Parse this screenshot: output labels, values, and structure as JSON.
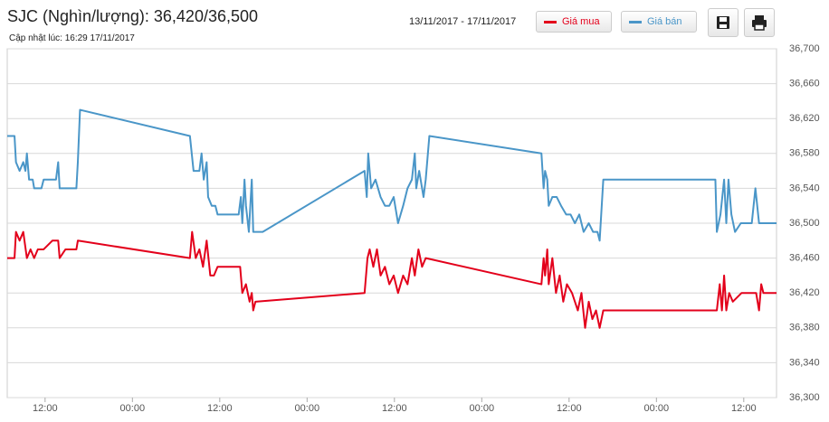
{
  "chart_data": {
    "type": "line",
    "title": "SJC (Nghìn/lượng): 36,420/36,500",
    "subtitle": "Cập nhật lúc: 16:29 17/11/2017",
    "date_range": "13/11/2017 - 17/11/2017",
    "xlim": [
      6.8,
      112.5
    ],
    "xticks": [
      {
        "value": 12,
        "label": "12:00"
      },
      {
        "value": 24,
        "label": "00:00"
      },
      {
        "value": 36,
        "label": "12:00"
      },
      {
        "value": 48,
        "label": "00:00"
      },
      {
        "value": 60,
        "label": "12:00"
      },
      {
        "value": 72,
        "label": "00:00"
      },
      {
        "value": 84,
        "label": "12:00"
      },
      {
        "value": 96,
        "label": "00:00"
      },
      {
        "value": 108,
        "label": "12:00"
      }
    ],
    "ylim": [
      36300,
      36700
    ],
    "yticks": [
      {
        "value": 36300,
        "label": "36,300"
      },
      {
        "value": 36340,
        "label": "36,340"
      },
      {
        "value": 36380,
        "label": "36,380"
      },
      {
        "value": 36420,
        "label": "36,420"
      },
      {
        "value": 36460,
        "label": "36,460"
      },
      {
        "value": 36500,
        "label": "36,500"
      },
      {
        "value": 36540,
        "label": "36,540"
      },
      {
        "value": 36580,
        "label": "36,580"
      },
      {
        "value": 36620,
        "label": "36,620"
      },
      {
        "value": 36660,
        "label": "36,660"
      },
      {
        "value": 36700,
        "label": "36,700"
      }
    ],
    "grid": true,
    "series": [
      {
        "name": "Giá mua",
        "color": "#e3001b",
        "x": [
          6.8,
          7.8,
          8.0,
          8.5,
          9.0,
          9.5,
          10.0,
          10.5,
          11.0,
          11.8,
          13.0,
          13.8,
          14.0,
          14.8,
          16.3,
          16.5,
          31.9,
          32.2,
          32.7,
          33.2,
          33.7,
          34.2,
          34.7,
          35.2,
          35.7,
          37.5,
          38.8,
          39.1,
          39.6,
          40.1,
          40.4,
          40.6,
          40.9,
          55.9,
          56.3,
          56.6,
          57.1,
          57.6,
          58.1,
          58.7,
          59.3,
          59.9,
          60.5,
          61.2,
          61.8,
          62.4,
          62.8,
          63.3,
          63.8,
          64.3,
          80.2,
          80.5,
          80.7,
          81.0,
          81.2,
          81.7,
          82.2,
          82.7,
          83.2,
          83.7,
          84.4,
          85.2,
          85.7,
          86.2,
          86.7,
          87.2,
          87.7,
          88.2,
          88.7,
          104.3,
          104.7,
          105.0,
          105.3,
          105.6,
          106.0,
          106.5,
          107.7,
          109.7,
          110.1,
          110.4,
          110.7,
          112.5
        ],
        "values": [
          36460,
          36460,
          36490,
          36480,
          36490,
          36460,
          36470,
          36460,
          36470,
          36470,
          36480,
          36480,
          36460,
          36470,
          36470,
          36480,
          36460,
          36490,
          36460,
          36470,
          36450,
          36480,
          36440,
          36440,
          36450,
          36450,
          36450,
          36420,
          36430,
          36410,
          36420,
          36400,
          36410,
          36420,
          36460,
          36470,
          36450,
          36470,
          36440,
          36450,
          36430,
          36440,
          36420,
          36440,
          36430,
          36460,
          36440,
          36470,
          36450,
          36460,
          36430,
          36460,
          36440,
          36470,
          36430,
          36460,
          36420,
          36440,
          36410,
          36430,
          36420,
          36400,
          36420,
          36380,
          36410,
          36390,
          36400,
          36380,
          36400,
          36400,
          36430,
          36400,
          36440,
          36400,
          36420,
          36410,
          36420,
          36420,
          36400,
          36430,
          36420,
          36420
        ]
      },
      {
        "name": "Giá bán",
        "color": "#4a96c8",
        "x": [
          6.8,
          7.8,
          8.0,
          8.5,
          9.0,
          9.3,
          9.5,
          9.8,
          10.3,
          10.5,
          11.5,
          11.8,
          13.5,
          13.8,
          14.0,
          16.3,
          16.5,
          16.8,
          31.9,
          32.4,
          33.2,
          33.5,
          33.8,
          34.2,
          34.4,
          34.9,
          35.4,
          35.7,
          38.6,
          38.9,
          39.1,
          39.4,
          39.6,
          40.0,
          40.4,
          40.6,
          41.9,
          55.9,
          56.2,
          56.4,
          56.8,
          57.4,
          58.1,
          58.7,
          59.3,
          59.9,
          60.5,
          61.2,
          61.8,
          62.4,
          62.8,
          63.0,
          63.4,
          64.0,
          64.3,
          64.8,
          80.2,
          80.5,
          80.7,
          81.0,
          81.2,
          81.7,
          82.3,
          82.9,
          83.6,
          84.2,
          84.8,
          85.4,
          86.0,
          86.7,
          87.3,
          87.9,
          88.2,
          88.7,
          104.1,
          104.3,
          104.8,
          105.3,
          105.6,
          105.9,
          106.3,
          106.8,
          107.6,
          109.1,
          109.6,
          110.1,
          112.5
        ],
        "values": [
          36600,
          36600,
          36570,
          36560,
          36570,
          36560,
          36580,
          36550,
          36550,
          36540,
          36540,
          36550,
          36550,
          36570,
          36540,
          36540,
          36570,
          36630,
          36600,
          36560,
          36560,
          36580,
          36550,
          36570,
          36530,
          36520,
          36520,
          36510,
          36510,
          36530,
          36500,
          36550,
          36520,
          36490,
          36550,
          36490,
          36490,
          36560,
          36530,
          36580,
          36540,
          36550,
          36530,
          36520,
          36520,
          36530,
          36500,
          36520,
          36540,
          36550,
          36580,
          36540,
          36560,
          36530,
          36550,
          36600,
          36580,
          36540,
          36560,
          36550,
          36520,
          36530,
          36530,
          36520,
          36510,
          36510,
          36500,
          36510,
          36490,
          36500,
          36490,
          36490,
          36480,
          36550,
          36550,
          36490,
          36510,
          36550,
          36500,
          36550,
          36510,
          36490,
          36500,
          36500,
          36540,
          36500,
          36500
        ]
      }
    ]
  }
}
